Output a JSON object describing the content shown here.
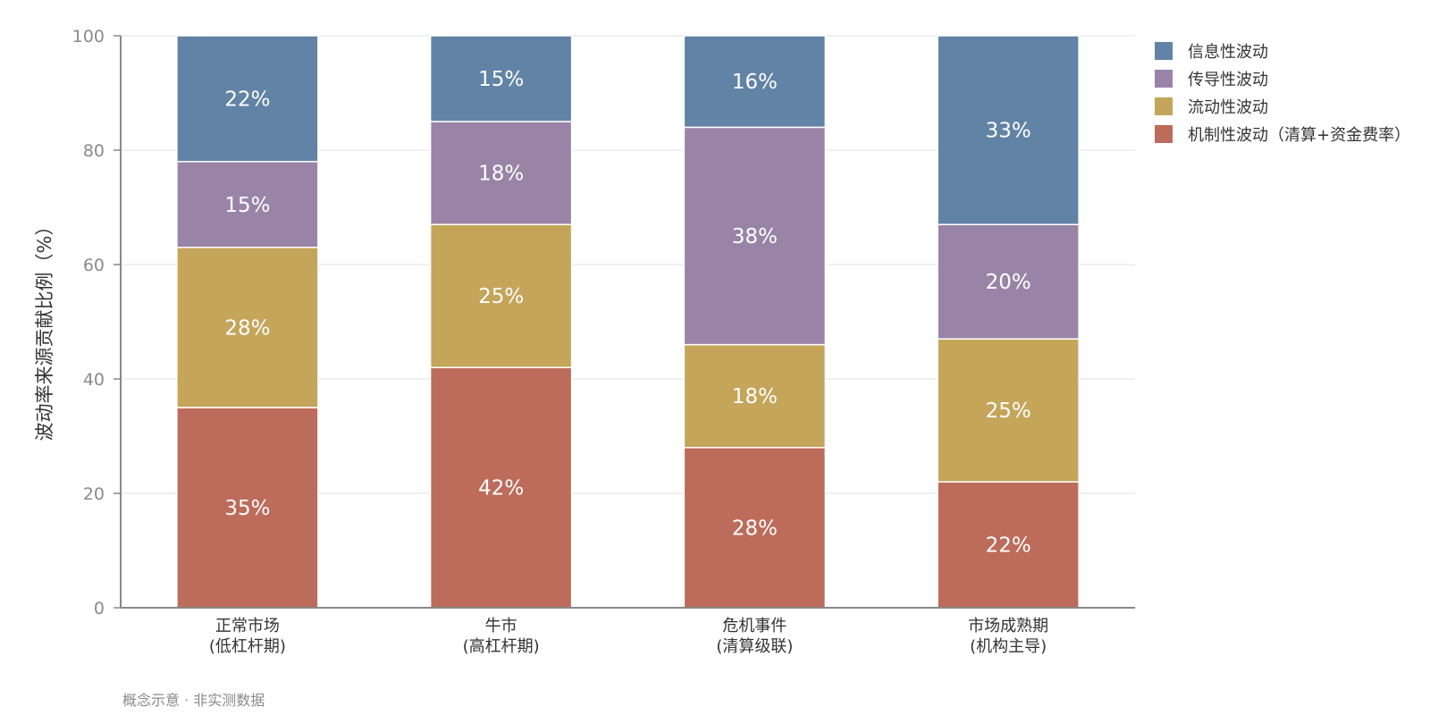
{
  "chart_data": {
    "type": "bar",
    "stacked": true,
    "categories": [
      [
        "正常市场",
        "(低杠杆期)"
      ],
      [
        "牛市",
        "(高杠杆期)"
      ],
      [
        "危机事件",
        "(清算级联)"
      ],
      [
        "市场成熟期",
        "(机构主导)"
      ]
    ],
    "series": [
      {
        "name": "机制性波动（清算+资金费率）",
        "color": "#bd6b5a",
        "values": [
          35,
          42,
          28,
          22
        ],
        "labels": [
          "35%",
          "42%",
          "28%",
          "22%"
        ]
      },
      {
        "name": "流动性波动",
        "color": "#c4a55a",
        "values": [
          28,
          25,
          18,
          25
        ],
        "labels": [
          "28%",
          "25%",
          "18%",
          "25%"
        ]
      },
      {
        "name": "传导性波动",
        "color": "#9984a7",
        "values": [
          15,
          18,
          38,
          20
        ],
        "labels": [
          "15%",
          "18%",
          "38%",
          "20%"
        ]
      },
      {
        "name": "信息性波动",
        "color": "#6183a5",
        "values": [
          22,
          15,
          16,
          33
        ],
        "labels": [
          "22%",
          "15%",
          "16%",
          "33%"
        ]
      }
    ],
    "legend_order": [
      3,
      2,
      1,
      0
    ],
    "ylabel": "波动率来源贡献比例（%）",
    "xlabel": "",
    "ylim": [
      0,
      100
    ],
    "yticks": [
      "0",
      "20",
      "40",
      "60",
      "80",
      "100"
    ],
    "grid": true,
    "legend_position": "top-right"
  },
  "footnote": "概念示意 · 非实测数据"
}
